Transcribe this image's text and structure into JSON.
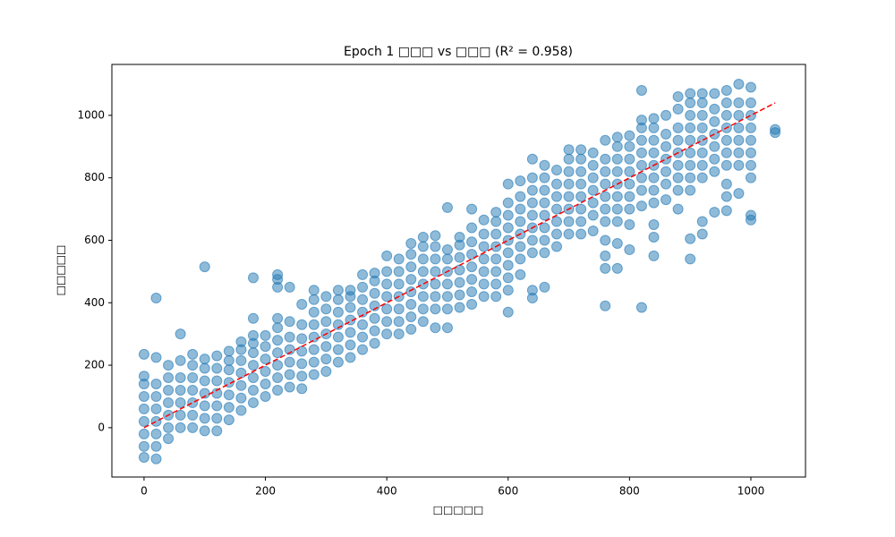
{
  "chart_data": {
    "type": "scatter",
    "title": "Epoch 1 □□□ vs □□□ (R² = 0.958)",
    "x_label": "□□□□□",
    "y_label": "□□□□□",
    "color": "#1f77b4",
    "x": [
      0,
      0,
      0,
      0,
      0,
      0,
      0,
      0,
      0,
      20,
      20,
      20,
      20,
      20,
      20,
      20,
      20,
      20,
      40,
      40,
      40,
      40,
      40,
      40,
      40,
      60,
      60,
      60,
      60,
      60,
      60,
      60,
      80,
      80,
      80,
      80,
      80,
      80,
      80,
      100,
      100,
      100,
      100,
      100,
      100,
      100,
      100,
      120,
      120,
      120,
      120,
      120,
      120,
      120,
      140,
      140,
      140,
      140,
      140,
      140,
      140,
      160,
      160,
      160,
      160,
      160,
      160,
      160,
      180,
      180,
      180,
      180,
      180,
      180,
      180,
      180,
      180,
      200,
      200,
      200,
      200,
      200,
      200,
      220,
      220,
      220,
      220,
      220,
      220,
      220,
      220,
      220,
      220,
      240,
      240,
      240,
      240,
      240,
      240,
      240,
      260,
      260,
      260,
      260,
      260,
      260,
      260,
      280,
      280,
      280,
      280,
      280,
      280,
      280,
      280,
      300,
      300,
      300,
      300,
      300,
      300,
      300,
      320,
      320,
      320,
      320,
      320,
      320,
      320,
      340,
      340,
      340,
      340,
      340,
      340,
      340,
      360,
      360,
      360,
      360,
      360,
      360,
      360,
      380,
      380,
      380,
      380,
      380,
      380,
      380,
      400,
      400,
      400,
      400,
      400,
      400,
      400,
      420,
      420,
      420,
      420,
      420,
      420,
      420,
      440,
      440,
      440,
      440,
      440,
      440,
      440,
      440,
      460,
      460,
      460,
      460,
      460,
      460,
      460,
      460,
      480,
      480,
      480,
      480,
      480,
      480,
      480,
      480,
      500,
      500,
      500,
      500,
      500,
      500,
      500,
      500,
      520,
      520,
      520,
      520,
      520,
      520,
      520,
      540,
      540,
      540,
      540,
      540,
      540,
      540,
      540,
      560,
      560,
      560,
      560,
      560,
      560,
      560,
      580,
      580,
      580,
      580,
      580,
      580,
      580,
      580,
      600,
      600,
      600,
      600,
      600,
      600,
      600,
      600,
      600,
      600,
      620,
      620,
      620,
      620,
      620,
      620,
      620,
      620,
      640,
      640,
      640,
      640,
      640,
      640,
      640,
      640,
      640,
      640,
      660,
      660,
      660,
      660,
      660,
      660,
      660,
      660,
      660,
      680,
      680,
      680,
      680,
      680,
      680,
      680,
      700,
      700,
      700,
      700,
      700,
      700,
      700,
      700,
      720,
      720,
      720,
      720,
      720,
      720,
      720,
      720,
      740,
      740,
      740,
      740,
      740,
      740,
      740,
      760,
      760,
      760,
      760,
      760,
      760,
      760,
      760,
      760,
      760,
      760,
      780,
      780,
      780,
      780,
      780,
      780,
      780,
      780,
      780,
      780,
      800,
      800,
      800,
      800,
      800,
      800,
      800,
      800,
      800,
      820,
      820,
      820,
      820,
      820,
      820,
      820,
      820,
      820,
      820,
      840,
      840,
      840,
      840,
      840,
      840,
      840,
      840,
      840,
      840,
      840,
      860,
      860,
      860,
      860,
      860,
      860,
      860,
      880,
      880,
      880,
      880,
      880,
      880,
      880,
      880,
      880,
      900,
      900,
      900,
      900,
      900,
      900,
      900,
      900,
      900,
      900,
      900,
      920,
      920,
      920,
      920,
      920,
      920,
      920,
      920,
      920,
      920,
      940,
      940,
      940,
      940,
      940,
      940,
      940,
      940,
      960,
      960,
      960,
      960,
      960,
      960,
      960,
      960,
      960,
      960,
      980,
      980,
      980,
      980,
      980,
      980,
      980,
      980,
      1000,
      1000,
      1000,
      1000,
      1000,
      1000,
      1000,
      1000,
      1000,
      1000,
      1040,
      1040
    ],
    "y": [
      -95,
      -60,
      -20,
      20,
      60,
      100,
      140,
      165,
      235,
      -100,
      -60,
      -20,
      20,
      60,
      100,
      140,
      225,
      415,
      -35,
      0,
      40,
      80,
      120,
      160,
      200,
      0,
      40,
      80,
      120,
      160,
      215,
      300,
      0,
      40,
      80,
      120,
      160,
      200,
      235,
      -10,
      30,
      70,
      110,
      150,
      190,
      220,
      515,
      -10,
      30,
      70,
      110,
      150,
      190,
      230,
      25,
      65,
      105,
      145,
      185,
      215,
      245,
      55,
      95,
      135,
      175,
      215,
      250,
      275,
      80,
      120,
      160,
      200,
      240,
      270,
      295,
      350,
      480,
      100,
      140,
      180,
      220,
      260,
      295,
      120,
      160,
      200,
      240,
      280,
      320,
      350,
      450,
      475,
      490,
      130,
      170,
      210,
      250,
      290,
      340,
      450,
      125,
      165,
      205,
      245,
      285,
      330,
      395,
      170,
      210,
      250,
      290,
      330,
      370,
      410,
      440,
      180,
      220,
      260,
      300,
      340,
      380,
      420,
      210,
      250,
      290,
      330,
      370,
      410,
      440,
      225,
      265,
      305,
      345,
      385,
      420,
      440,
      250,
      290,
      330,
      370,
      410,
      450,
      490,
      270,
      310,
      350,
      390,
      430,
      470,
      495,
      300,
      340,
      380,
      420,
      460,
      500,
      550,
      300,
      340,
      380,
      420,
      460,
      500,
      540,
      315,
      355,
      395,
      435,
      475,
      515,
      555,
      590,
      340,
      380,
      420,
      460,
      500,
      540,
      580,
      610,
      320,
      380,
      420,
      460,
      500,
      540,
      580,
      615,
      320,
      380,
      420,
      460,
      500,
      540,
      570,
      705,
      385,
      425,
      465,
      505,
      545,
      585,
      610,
      395,
      435,
      475,
      515,
      555,
      595,
      640,
      700,
      420,
      460,
      500,
      540,
      580,
      620,
      665,
      420,
      460,
      500,
      540,
      580,
      620,
      660,
      690,
      370,
      440,
      480,
      520,
      560,
      600,
      640,
      680,
      720,
      780,
      490,
      540,
      580,
      620,
      660,
      700,
      740,
      790,
      415,
      440,
      560,
      600,
      640,
      680,
      720,
      760,
      800,
      860,
      450,
      560,
      600,
      640,
      680,
      720,
      760,
      800,
      840,
      580,
      620,
      660,
      700,
      740,
      780,
      825,
      620,
      660,
      700,
      740,
      780,
      820,
      860,
      890,
      620,
      660,
      700,
      740,
      780,
      820,
      860,
      890,
      630,
      680,
      720,
      760,
      800,
      840,
      880,
      390,
      510,
      550,
      600,
      660,
      700,
      740,
      780,
      820,
      860,
      920,
      510,
      590,
      660,
      700,
      740,
      780,
      820,
      860,
      900,
      930,
      570,
      650,
      700,
      740,
      780,
      820,
      860,
      900,
      935,
      385,
      710,
      760,
      800,
      840,
      880,
      920,
      960,
      985,
      1080,
      550,
      610,
      650,
      720,
      760,
      800,
      840,
      880,
      920,
      960,
      990,
      730,
      780,
      820,
      860,
      900,
      940,
      1000,
      700,
      760,
      800,
      840,
      880,
      920,
      960,
      1020,
      1060,
      540,
      605,
      760,
      800,
      840,
      880,
      920,
      960,
      1000,
      1040,
      1070,
      620,
      660,
      800,
      840,
      880,
      920,
      960,
      1000,
      1040,
      1070,
      690,
      820,
      860,
      900,
      940,
      980,
      1020,
      1070,
      695,
      740,
      780,
      840,
      880,
      920,
      960,
      1000,
      1040,
      1080,
      750,
      840,
      880,
      920,
      960,
      1000,
      1040,
      1100,
      665,
      680,
      800,
      840,
      880,
      920,
      960,
      1000,
      1040,
      1090,
      945,
      955
    ],
    "fit_line": {
      "x": [
        0,
        1040
      ],
      "y": [
        0,
        1040
      ],
      "color": "#ff0000"
    },
    "xlim": [
      -53,
      1090
    ],
    "ylim": [
      -158,
      1163
    ],
    "xticks": [
      0,
      200,
      400,
      600,
      800,
      1000
    ],
    "yticks": [
      0,
      200,
      400,
      600,
      800,
      1000
    ],
    "grid": false
  }
}
